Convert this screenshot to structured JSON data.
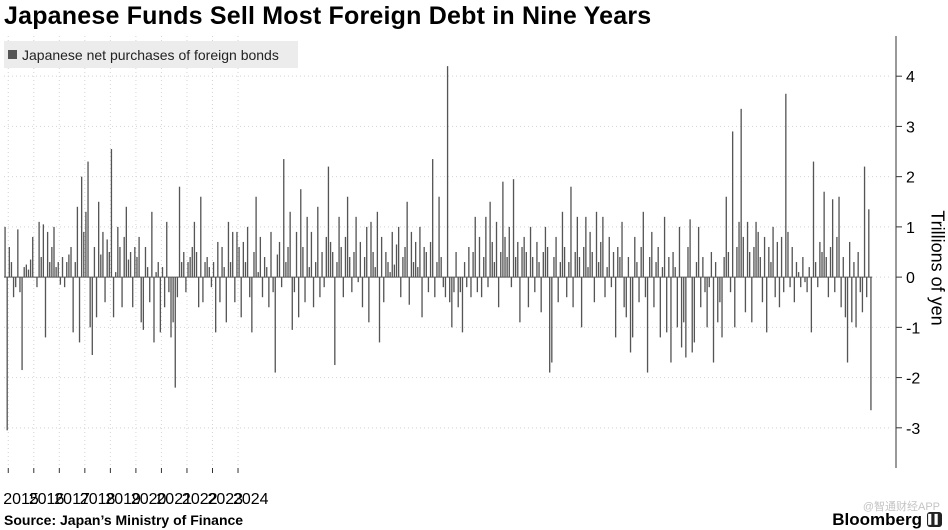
{
  "title": "Japanese Funds Sell Most Foreign Debt in Nine Years",
  "legend": {
    "label": "Japanese net purchases of foreign bonds"
  },
  "source": "Source: Japan’s Ministry of Finance",
  "brand": "Bloomberg",
  "watermark": "@智通财经APP",
  "colors": {
    "bar": "#555555",
    "grid": "#d4d4d4",
    "legend_bg": "#ececec",
    "axis": "#333333"
  },
  "chart_data": {
    "type": "bar",
    "ylabel": "Trillions of yen",
    "ylim": [
      -3.8,
      4.8
    ],
    "yticks": [
      -3,
      -2,
      -1,
      0,
      1,
      2,
      3,
      4
    ],
    "x_start": "2014-11",
    "x_ticks": [
      "2015",
      "2016",
      "2017",
      "2018",
      "2019",
      "2020",
      "2021",
      "2022",
      "2023",
      "2024"
    ],
    "grid": "vertical dotted at year starts, horizontal dotted at y ticks",
    "series": [
      {
        "values": [
          1.0,
          -3.05,
          0.6,
          0.3,
          -0.4,
          -0.2,
          0.95,
          -0.3,
          -1.85,
          0.2,
          0.25,
          0.15,
          0.35,
          0.8,
          0.0,
          -0.2,
          1.1,
          0.4,
          1.05,
          -1.2,
          0.9,
          0.3,
          0.6,
          1.0,
          0.2,
          0.3,
          -0.15,
          0.4,
          -0.2,
          0.3,
          0.45,
          0.6,
          -1.1,
          0.3,
          1.4,
          -1.3,
          2.0,
          0.9,
          1.3,
          2.3,
          -1.0,
          -1.55,
          0.6,
          -0.8,
          1.5,
          0.45,
          0.9,
          -0.5,
          0.75,
          0.5,
          2.55,
          -0.8,
          0.1,
          1.0,
          0.6,
          -0.6,
          0.8,
          1.4,
          0.35,
          0.5,
          -0.6,
          0.6,
          0.4,
          0.8,
          -0.9,
          -1.05,
          0.6,
          0.2,
          -0.5,
          1.3,
          -1.3,
          0.1,
          0.3,
          -1.1,
          0.2,
          -0.6,
          1.1,
          -0.3,
          -1.2,
          -0.9,
          -2.2,
          -0.4,
          1.8,
          0.3,
          0.5,
          -0.3,
          0.3,
          0.4,
          0.6,
          1.1,
          0.5,
          -0.6,
          1.6,
          -0.5,
          0.3,
          0.4,
          0.2,
          -0.2,
          0.3,
          -1.1,
          0.7,
          -0.5,
          0.6,
          0.2,
          -0.9,
          1.1,
          0.3,
          0.9,
          -0.5,
          0.9,
          0.6,
          -0.8,
          0.7,
          0.3,
          1.0,
          -0.4,
          -1.1,
          0.5,
          1.6,
          0.1,
          0.8,
          -0.4,
          0.4,
          0.2,
          -0.6,
          0.9,
          -0.3,
          -1.9,
          0.45,
          0.7,
          -0.2,
          2.35,
          0.3,
          0.6,
          1.3,
          -1.05,
          -0.3,
          0.9,
          -0.8,
          1.75,
          0.6,
          -0.5,
          1.2,
          0.2,
          0.9,
          -0.6,
          0.3,
          1.4,
          -0.4,
          0.5,
          -0.2,
          0.8,
          2.2,
          0.7,
          0.5,
          -1.75,
          0.3,
          1.2,
          0.6,
          -0.4,
          0.8,
          1.6,
          0.4,
          -0.3,
          0.5,
          1.2,
          -0.1,
          0.7,
          -0.6,
          0.4,
          1.0,
          -0.9,
          1.1,
          0.5,
          0.2,
          1.3,
          -1.3,
          0.8,
          -0.5,
          0.5,
          0.3,
          0.1,
          0.9,
          0.25,
          0.65,
          1.0,
          -0.4,
          0.4,
          0.6,
          1.5,
          -0.55,
          0.9,
          0.3,
          0.7,
          0.2,
          1.0,
          -0.8,
          0.6,
          0.5,
          -0.3,
          0.7,
          2.35,
          -0.4,
          0.3,
          1.6,
          0.4,
          -0.2,
          -0.4,
          4.2,
          -0.5,
          -1.0,
          -0.3,
          0.5,
          -0.6,
          -0.3,
          -1.1,
          0.3,
          -0.2,
          0.6,
          -0.4,
          0.5,
          1.2,
          -0.3,
          0.8,
          -0.4,
          0.4,
          1.2,
          -0.2,
          1.5,
          0.7,
          0.3,
          1.1,
          -0.6,
          0.5,
          1.9,
          0.8,
          0.4,
          1.0,
          -0.2,
          1.95,
          0.4,
          0.7,
          -0.9,
          0.6,
          0.8,
          0.5,
          -0.6,
          1.0,
          0.4,
          -0.3,
          0.7,
          0.3,
          -0.7,
          0.5,
          1.0,
          0.6,
          -1.9,
          -1.7,
          0.4,
          0.8,
          -0.5,
          0.3,
          1.3,
          0.6,
          -0.4,
          0.3,
          1.8,
          -0.6,
          0.5,
          1.2,
          0.4,
          -1.0,
          0.6,
          1.2,
          0.2,
          0.9,
          0.5,
          -0.5,
          1.3,
          0.3,
          0.7,
          1.2,
          -0.4,
          0.2,
          0.8,
          -0.2,
          0.5,
          -1.2,
          0.6,
          0.4,
          1.1,
          -0.6,
          -0.8,
          0.4,
          -1.5,
          -1.2,
          0.8,
          0.3,
          -0.5,
          0.6,
          1.3,
          -0.4,
          -1.9,
          0.4,
          0.9,
          -0.6,
          0.3,
          0.6,
          -1.2,
          0.2,
          1.2,
          -1.1,
          0.4,
          -1.7,
          0.5,
          0.2,
          -1.0,
          1.0,
          -1.4,
          -0.9,
          -1.6,
          0.6,
          1.15,
          -1.5,
          -1.3,
          0.3,
          1.0,
          -0.6,
          0.4,
          -0.3,
          -1.0,
          -0.2,
          0.5,
          -1.7,
          0.3,
          -0.9,
          -0.5,
          -1.2,
          0.4,
          1.6,
          0.5,
          -0.3,
          2.9,
          -1.0,
          0.6,
          1.1,
          3.35,
          0.8,
          -0.7,
          1.1,
          0.5,
          -0.9,
          0.6,
          1.1,
          0.9,
          0.4,
          -0.5,
          0.8,
          -1.1,
          0.6,
          0.3,
          1.0,
          -0.4,
          0.7,
          -0.6,
          0.8,
          -0.3,
          3.65,
          0.9,
          -0.2,
          0.6,
          -0.5,
          0.3,
          0.1,
          -0.2,
          0.4,
          -0.1,
          -0.3,
          0.2,
          -1.1,
          2.3,
          0.3,
          -0.2,
          0.7,
          0.5,
          1.7,
          0.4,
          -0.4,
          0.6,
          1.55,
          -0.3,
          0.8,
          1.6,
          -0.6,
          0.4,
          -0.8,
          -1.7,
          0.7,
          -0.9,
          0.3,
          -1.0,
          0.5,
          -0.3,
          -0.7,
          2.2,
          -0.4,
          1.35,
          -2.65
        ]
      }
    ]
  }
}
